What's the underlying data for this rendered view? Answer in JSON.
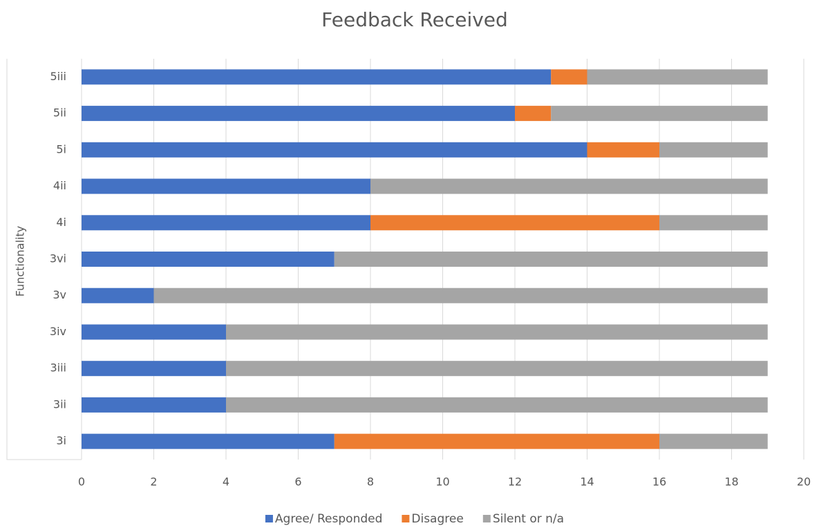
{
  "chart_data": {
    "type": "stacked-bar-horizontal",
    "title": "Feedback Received",
    "y_label": "Functionality",
    "categories": [
      "3i",
      "3ii",
      "3iii",
      "3iv",
      "3v",
      "3vi",
      "4i",
      "4ii",
      "5i",
      "5ii",
      "5iii"
    ],
    "series": [
      {
        "name": "Agree/ Responded",
        "color": "#4472c4",
        "values": [
          7,
          4,
          4,
          4,
          2,
          7,
          8,
          8,
          14,
          12,
          13
        ]
      },
      {
        "name": "Disagree",
        "color": "#ed7d31",
        "values": [
          9,
          0,
          0,
          0,
          0,
          0,
          8,
          0,
          2,
          1,
          1
        ]
      },
      {
        "name": "Silent or n/a",
        "color": "#a5a5a5",
        "values": [
          3,
          15,
          15,
          15,
          17,
          12,
          3,
          11,
          3,
          6,
          5
        ]
      }
    ],
    "xlim": [
      0,
      20
    ],
    "xticks": [
      0,
      2,
      4,
      6,
      8,
      10,
      12,
      14,
      16,
      18,
      20
    ],
    "grid": true,
    "legend": "bottom"
  }
}
